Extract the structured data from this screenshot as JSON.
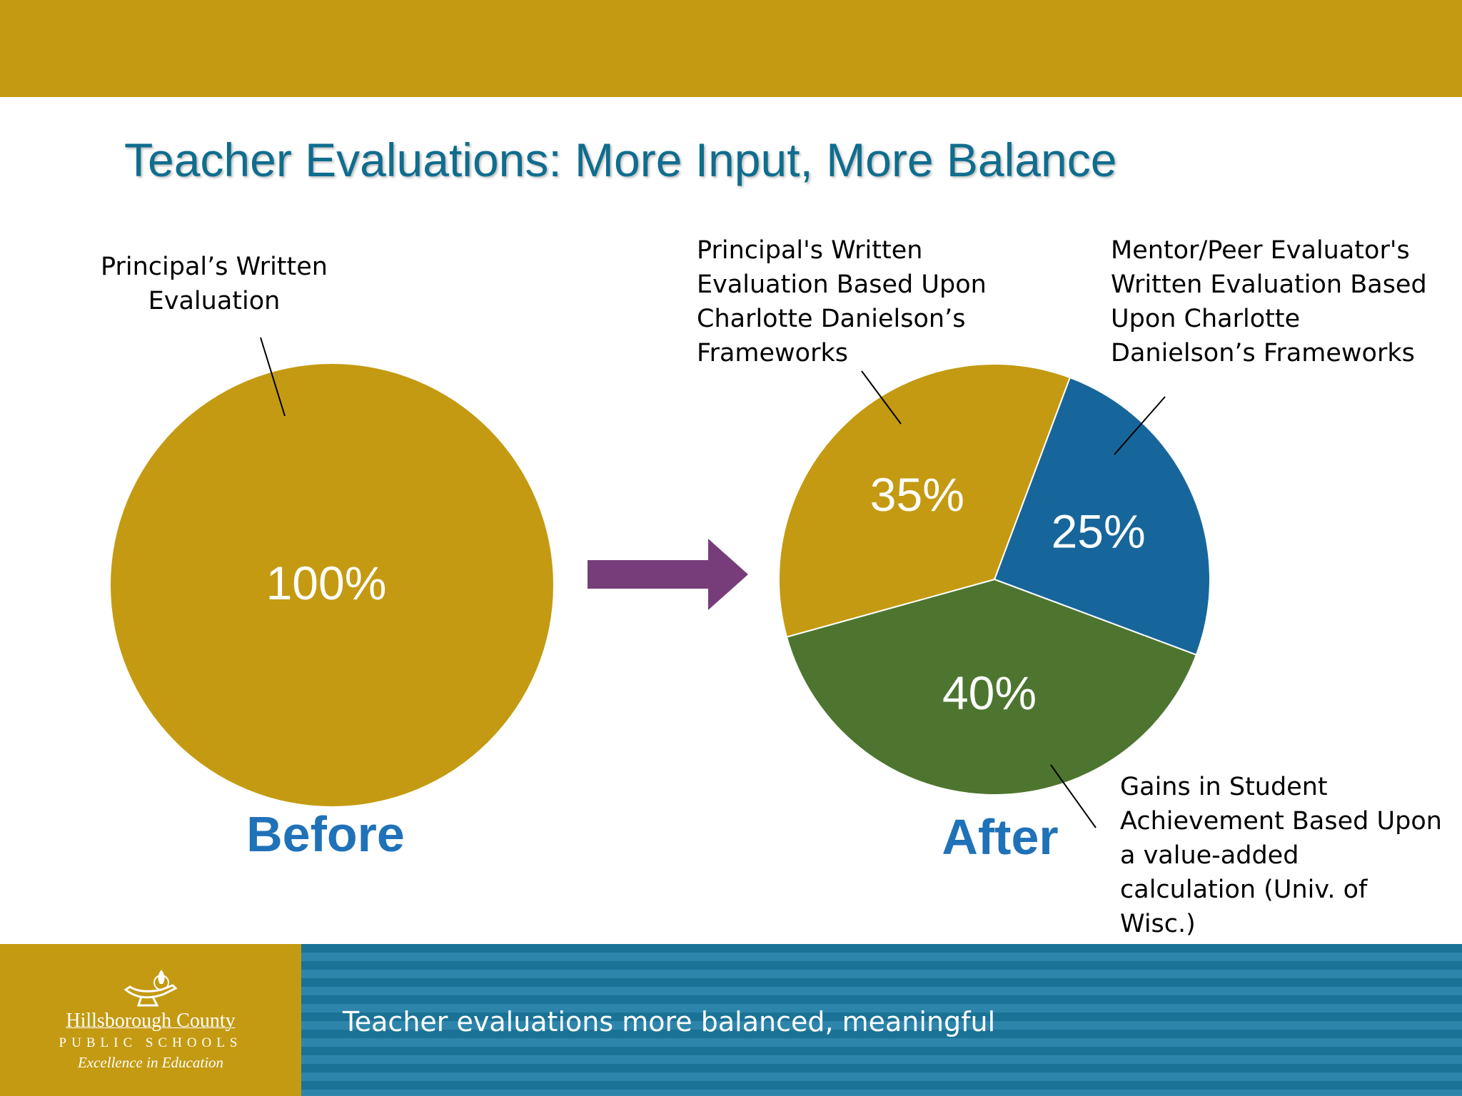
{
  "header": {
    "title": "Teacher Evaluations: More Input, More Balance"
  },
  "colors": {
    "gold": "#c49a12",
    "blue": "#17669b",
    "green": "#4d7530",
    "arrow": "#773d7a",
    "title": "#0f6d8e",
    "caption": "#1f72b8"
  },
  "chart_data": [
    {
      "type": "pie",
      "caption": "Before",
      "slices": [
        {
          "label": "Principal’s Written\nEvaluation",
          "value": 100,
          "value_label": "100%",
          "color": "#c49a12"
        }
      ]
    },
    {
      "type": "pie",
      "caption": "After",
      "slices": [
        {
          "label": "Principal's Written\nEvaluation Based Upon\nCharlotte Danielson’s\nFrameworks",
          "value": 35,
          "value_label": "35%",
          "color": "#c49a12"
        },
        {
          "label": "Mentor/Peer Evaluator's\nWritten Evaluation Based\nUpon Charlotte\nDanielson’s Frameworks",
          "value": 25,
          "value_label": "25%",
          "color": "#17669b"
        },
        {
          "label": "Gains in Student\nAchievement Based Upon\na value-added\ncalculation (Univ. of\nWisc.)",
          "value": 40,
          "value_label": "40%",
          "color": "#4d7530"
        }
      ]
    }
  ],
  "footer": {
    "text": "Teacher evaluations more balanced, meaningful",
    "logo": {
      "name": "Hillsborough County",
      "subtitle": "PUBLIC SCHOOLS",
      "motto": "Excellence in Education"
    }
  }
}
